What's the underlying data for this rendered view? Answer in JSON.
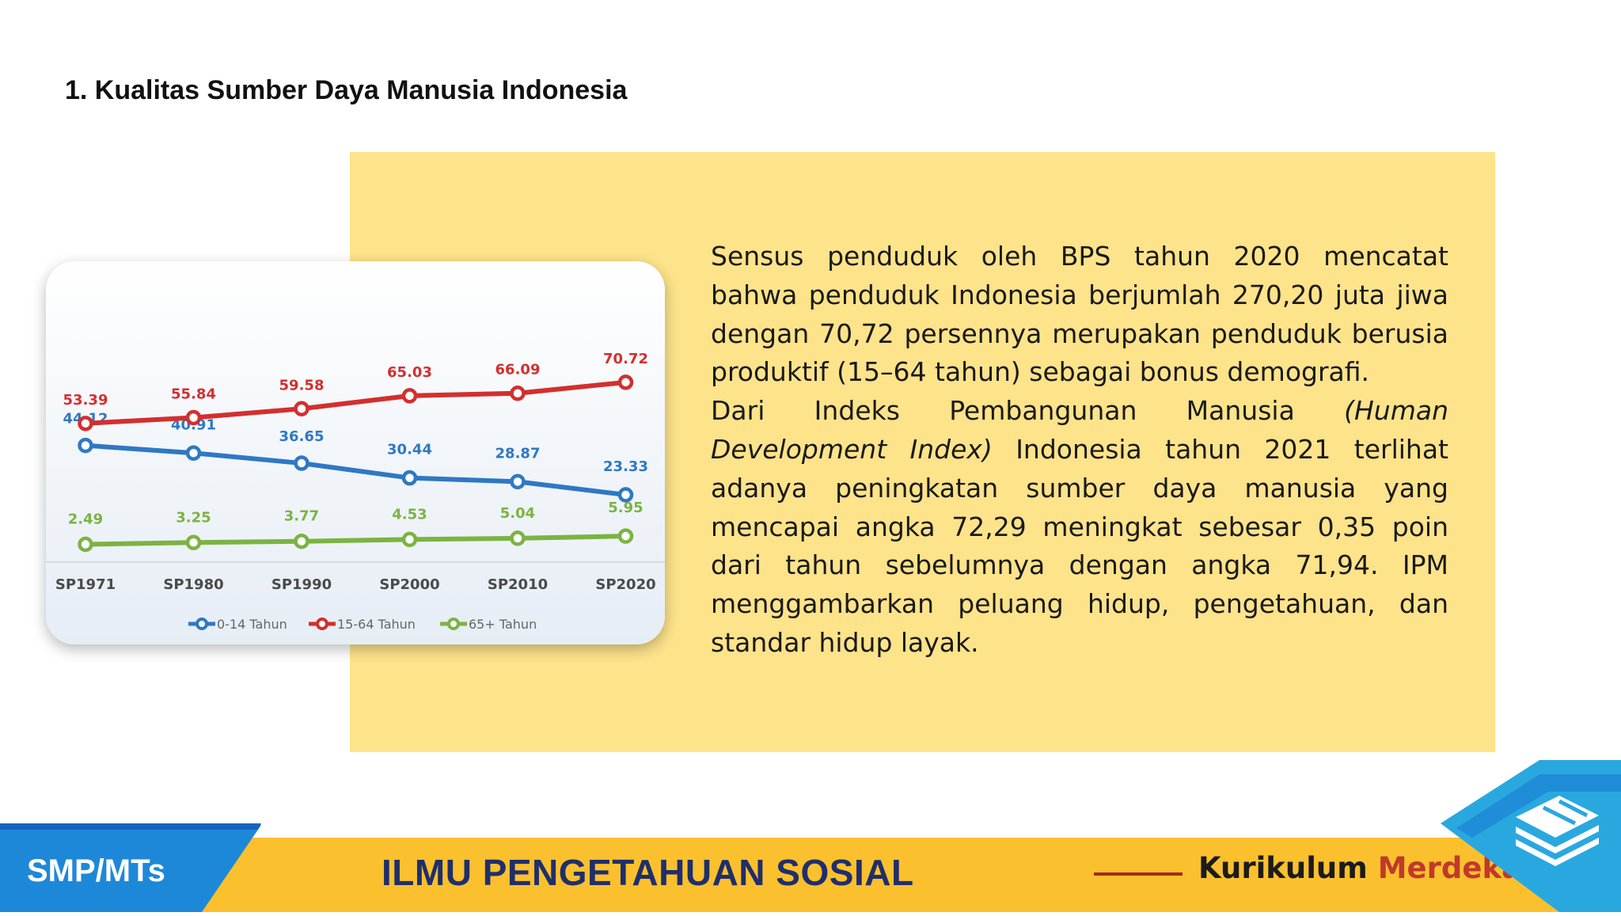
{
  "slide": {
    "title": "1. Kualitas Sumber Daya Manusia Indonesia"
  },
  "body": {
    "para1": "Sensus penduduk oleh BPS tahun 2020 mencatat bahwa penduduk Indonesia berjumlah 270,20 juta jiwa dengan 70,72 persennya merupakan penduduk berusia produktif (15–64 tahun) sebagai bonus demografi.",
    "para2_start": "Dari Indeks Pembangunan Manusia ",
    "para2_italic": "(Human Development Index)",
    "para2_end": " Indonesia tahun 2021 terlihat adanya peningkatan sumber daya manusia yang mencapai angka 72,29 meningkat sebesar 0,35 poin dari tahun sebelumnya dengan angka 71,94. IPM menggambarkan peluang hidup, pengetahuan, dan standar hidup layak."
  },
  "footer": {
    "level": "SMP/MTs",
    "subject": "ILMU PENGETAHUAN SOSIAL",
    "curriculum_1": "Kurikulum",
    "curriculum_2": "Merdeka"
  },
  "colors": {
    "background_box": "#fde38a",
    "footer_yellow": "#fbc02d",
    "footer_blue": "#1e88d8",
    "series_0_14": "#2f78c4",
    "series_15_64": "#d32f2f",
    "series_65": "#7cb342"
  },
  "icons": {
    "corner": "layers-book-icon"
  },
  "chart_data": {
    "type": "line",
    "categories": [
      "SP1971",
      "SP1980",
      "SP1990",
      "SP2000",
      "SP2010",
      "SP2020"
    ],
    "series": [
      {
        "name": "0-14 Tahun",
        "values": [
          44.12,
          40.91,
          36.65,
          30.44,
          28.87,
          23.33
        ],
        "color": "#2f78c4"
      },
      {
        "name": "15-64 Tahun",
        "values": [
          53.39,
          55.84,
          59.58,
          65.03,
          66.09,
          70.72
        ],
        "color": "#d32f2f"
      },
      {
        "name": "65+ Tahun",
        "values": [
          2.49,
          3.25,
          3.77,
          4.53,
          5.04,
          5.95
        ],
        "color": "#7cb342"
      }
    ],
    "legend": "bottom",
    "grid": false
  }
}
